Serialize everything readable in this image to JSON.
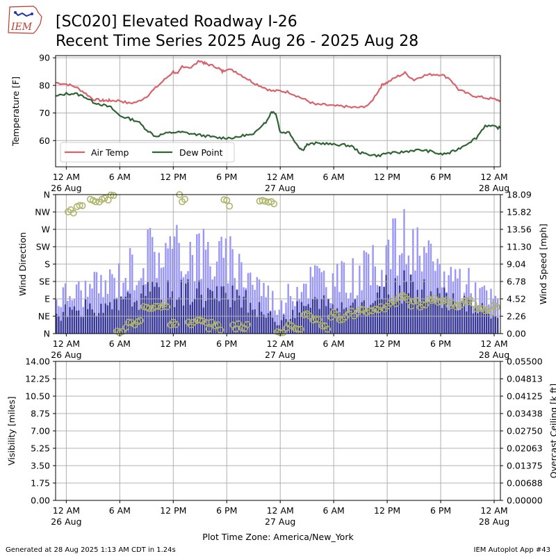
{
  "header": {
    "logo_text": "IEM",
    "title_line1": "[SC020] Elevated Roadway I-26",
    "title_line2": "Recent Time Series 2025 Aug 26 - 2025 Aug 28"
  },
  "footer": {
    "generated": "Generated at 28 Aug 2025 1:13 AM CDT in 1.24s",
    "app": "IEM Autoplot App #43",
    "timezone_label": "Plot Time Zone: America/New_York"
  },
  "colors": {
    "air_temp": "#d9626a",
    "dew_point": "#2e6333",
    "gust": "#9a96f8",
    "speed": "#373796",
    "direction": "#aeb46a",
    "grid": "#b0b0b0",
    "ceiling_axis": "#008000"
  },
  "x_axis": {
    "range_hours": [
      -1.2,
      48.7
    ],
    "ticks": [
      {
        "h": 0,
        "line1": "12 AM",
        "line2": "26 Aug"
      },
      {
        "h": 6,
        "line1": "6 AM",
        "line2": ""
      },
      {
        "h": 12,
        "line1": "12 PM",
        "line2": ""
      },
      {
        "h": 18,
        "line1": "6 PM",
        "line2": ""
      },
      {
        "h": 24,
        "line1": "12 AM",
        "line2": "27 Aug"
      },
      {
        "h": 30,
        "line1": "6 AM",
        "line2": ""
      },
      {
        "h": 36,
        "line1": "12 PM",
        "line2": ""
      },
      {
        "h": 42,
        "line1": "6 PM",
        "line2": ""
      },
      {
        "h": 48,
        "line1": "12 AM",
        "line2": "28 Aug"
      }
    ]
  },
  "chart_data": [
    {
      "type": "line",
      "ylabel": "Temperature [F]",
      "ylim": [
        50.5,
        90.8
      ],
      "yticks": [
        60,
        70,
        80,
        90
      ],
      "grid": true,
      "legend": "lower-left",
      "series": [
        {
          "name": "Air Temp",
          "x": [
            -1.2,
            0,
            1,
            2,
            3,
            4,
            4.5,
            5,
            6,
            7,
            8,
            9,
            10,
            11,
            12,
            12.5,
            13,
            14,
            15,
            15.5,
            16,
            17,
            17.5,
            18,
            19,
            20,
            21,
            22,
            23,
            24,
            25,
            26,
            27,
            28,
            29,
            30,
            31,
            32,
            33,
            34,
            35,
            35.5,
            36,
            37,
            38,
            39,
            40,
            41,
            42,
            43,
            44,
            45,
            46,
            47,
            48,
            48.7
          ],
          "y": [
            81,
            80.5,
            79.5,
            77.5,
            75,
            74.5,
            74.5,
            74.5,
            74.5,
            73.5,
            74,
            76,
            79,
            82,
            85,
            84,
            87,
            86.5,
            89,
            88,
            87.5,
            86.5,
            85,
            86,
            85,
            83,
            81,
            79.5,
            78,
            78,
            77.5,
            76,
            74.5,
            73,
            73,
            72.5,
            72.5,
            72,
            72,
            73,
            78,
            80.5,
            81,
            83,
            84.5,
            82,
            83.5,
            84,
            84,
            82.5,
            78.5,
            77,
            76,
            75.5,
            75,
            74.5
          ]
        },
        {
          "name": "Dew Point",
          "x": [
            -1.2,
            0,
            1,
            2,
            3,
            4,
            5,
            6,
            7,
            8,
            9,
            10,
            11,
            12,
            13,
            14,
            15,
            16,
            17,
            18,
            19,
            20,
            21,
            22,
            22.5,
            23,
            23.5,
            24,
            25,
            26,
            26.5,
            27,
            28,
            29,
            30,
            31,
            32,
            33,
            34,
            35,
            36,
            37,
            38,
            39,
            40,
            41,
            42,
            43,
            44,
            45,
            46,
            47,
            48,
            48.7
          ],
          "y": [
            76,
            77,
            77,
            76,
            74,
            73,
            72,
            69,
            68,
            67,
            64,
            61.5,
            62.5,
            63,
            63,
            62.5,
            62,
            61.5,
            61,
            61,
            61,
            62,
            62,
            66,
            67,
            70.5,
            70,
            63,
            63,
            58,
            56.5,
            58.5,
            59,
            59,
            58.5,
            58.5,
            58,
            55.5,
            55,
            54.5,
            55.5,
            55.5,
            56,
            56.5,
            56.5,
            56,
            55,
            55.5,
            57,
            59,
            61,
            65.5,
            65,
            64.5
          ]
        }
      ]
    },
    {
      "type": "bar",
      "ylabel": "Wind Direction",
      "y2label": "Wind Speed [mph]",
      "direction_ticks": [
        "N",
        "NE",
        "E",
        "SE",
        "S",
        "SW",
        "W",
        "NW",
        "N"
      ],
      "direction_ylim": [
        0,
        360
      ],
      "speed_ylim": [
        0,
        18.09
      ],
      "speed_ticks": [
        "0.00",
        "2.26",
        "4.52",
        "6.78",
        "9.04",
        "11.30",
        "13.56",
        "15.82",
        "18.09"
      ],
      "grid": true,
      "gust_envelope": {
        "x": [
          -1,
          0,
          2,
          4,
          6,
          8,
          10,
          12,
          14,
          16,
          18,
          20,
          22,
          24,
          26,
          28,
          30,
          32,
          34,
          36,
          38,
          40,
          42,
          44,
          46,
          48,
          48.5
        ],
        "y": [
          5,
          5.5,
          6,
          6.5,
          8,
          10,
          12,
          11,
          12,
          11,
          10,
          9,
          6.5,
          3.5,
          7,
          8,
          7,
          8,
          8.5,
          11.5,
          13,
          10,
          8.5,
          8,
          6,
          4.5,
          4.5
        ]
      },
      "speed_envelope": {
        "x": [
          -1,
          0,
          2,
          4,
          6,
          8,
          10,
          12,
          14,
          16,
          18,
          20,
          22,
          24,
          26,
          28,
          30,
          32,
          34,
          36,
          38,
          40,
          42,
          44,
          46,
          48,
          48.5
        ],
        "y": [
          2.5,
          3,
          3.5,
          3,
          4,
          5,
          5.5,
          5.5,
          6,
          5.5,
          5,
          4.5,
          3,
          1.5,
          3.5,
          4.2,
          3.5,
          4,
          4.2,
          6,
          6.5,
          5.5,
          4.8,
          4.5,
          3.5,
          2.5,
          2.5
        ]
      },
      "direction_points": [
        {
          "x": 0.5,
          "y": 315
        },
        {
          "x": 1.5,
          "y": 335
        },
        {
          "x": 3,
          "y": 340
        },
        {
          "x": 4,
          "y": 350
        },
        {
          "x": 5,
          "y": 355
        },
        {
          "x": 6,
          "y": 10
        },
        {
          "x": 7,
          "y": 20
        },
        {
          "x": 8,
          "y": 25
        },
        {
          "x": 9,
          "y": 60
        },
        {
          "x": 10,
          "y": 65
        },
        {
          "x": 11,
          "y": 70
        },
        {
          "x": 12,
          "y": 30
        },
        {
          "x": 13,
          "y": 350
        },
        {
          "x": 14,
          "y": 30
        },
        {
          "x": 15,
          "y": 25
        },
        {
          "x": 16,
          "y": 20
        },
        {
          "x": 17,
          "y": 15
        },
        {
          "x": 18,
          "y": 340
        },
        {
          "x": 19,
          "y": 20
        },
        {
          "x": 20,
          "y": 15
        },
        {
          "x": 22,
          "y": 335
        },
        {
          "x": 23,
          "y": 345
        },
        {
          "x": 24,
          "y": 355
        },
        {
          "x": 25,
          "y": 15
        },
        {
          "x": 26,
          "y": 20
        },
        {
          "x": 27,
          "y": 50
        },
        {
          "x": 28,
          "y": 30
        },
        {
          "x": 29,
          "y": 20
        },
        {
          "x": 30,
          "y": 50
        },
        {
          "x": 31,
          "y": 45
        },
        {
          "x": 32,
          "y": 50
        },
        {
          "x": 33,
          "y": 60
        },
        {
          "x": 34,
          "y": 55
        },
        {
          "x": 35,
          "y": 60
        },
        {
          "x": 36,
          "y": 70
        },
        {
          "x": 37,
          "y": 85
        },
        {
          "x": 38,
          "y": 90
        },
        {
          "x": 39,
          "y": 80
        },
        {
          "x": 40,
          "y": 75
        },
        {
          "x": 41,
          "y": 85
        },
        {
          "x": 42,
          "y": 88
        },
        {
          "x": 43,
          "y": 80
        },
        {
          "x": 44,
          "y": 75
        },
        {
          "x": 45,
          "y": 80
        },
        {
          "x": 46,
          "y": 72
        },
        {
          "x": 47,
          "y": 60
        },
        {
          "x": 48,
          "y": 65
        }
      ]
    },
    {
      "type": "line",
      "ylabel": "Visibility [miles]",
      "y2label": "Overcast Ceiling [k ft]",
      "ylim": [
        0,
        14
      ],
      "yticks": [
        "0.00",
        "1.75",
        "3.50",
        "5.25",
        "7.00",
        "8.75",
        "10.50",
        "12.25",
        "14.00"
      ],
      "y2lim": [
        0,
        0.055
      ],
      "y2ticks": [
        "0.00000",
        "0.00688",
        "0.01375",
        "0.02063",
        "0.02750",
        "0.03438",
        "0.04125",
        "0.04813",
        "0.05500"
      ],
      "grid": true,
      "series": []
    }
  ]
}
